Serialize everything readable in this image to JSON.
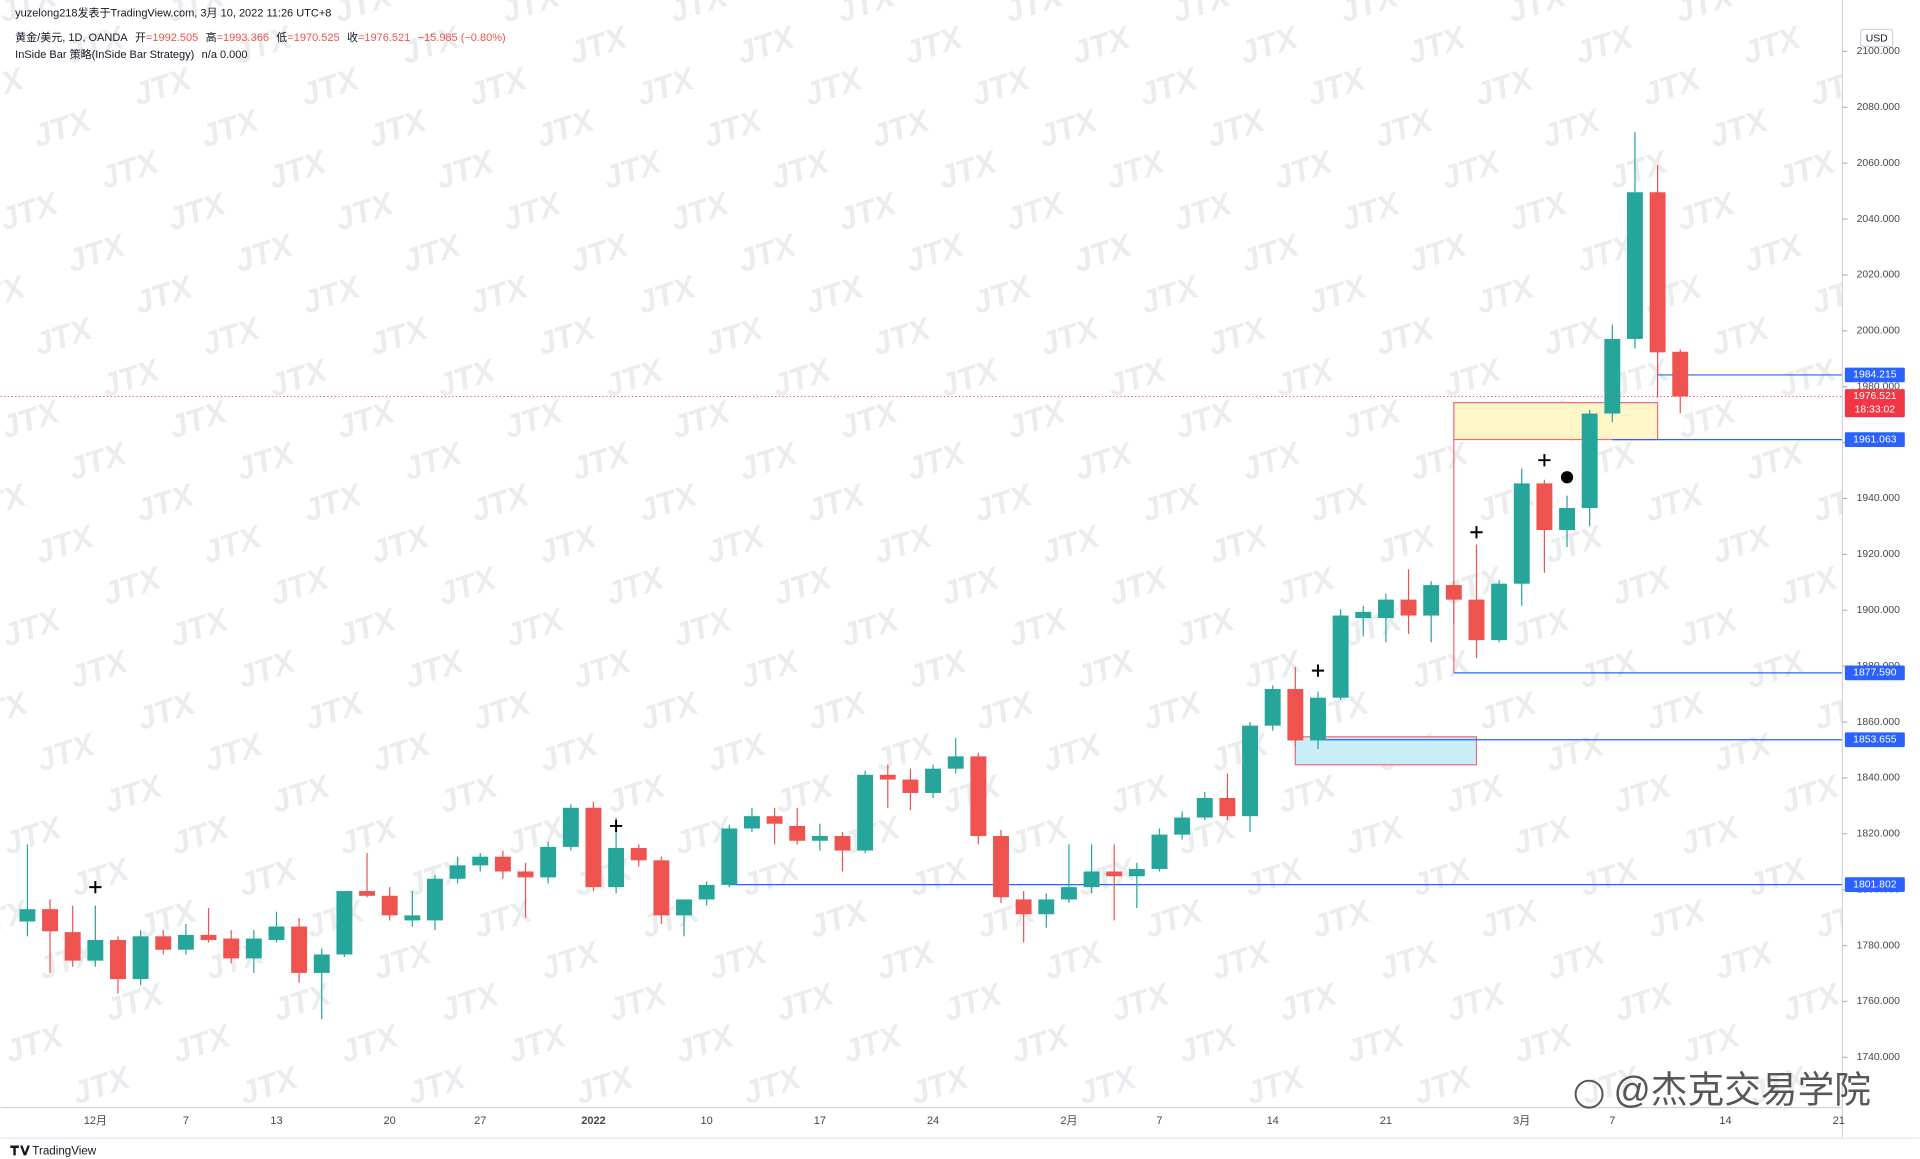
{
  "chart_data": {
    "type": "candlestick",
    "header": {
      "credit": "yuzelong218发表于TradingView.com, 3月 10, 2022 11:26 UTC+8",
      "symbol": "黄金/美元, 1D, OANDA",
      "ohlc": [
        [
          "开",
          "=1992.505"
        ],
        [
          "高",
          "=1993.366"
        ],
        [
          "低",
          "=1970.525"
        ],
        [
          "收",
          "=1976.521"
        ]
      ],
      "change": "−15.985 (−0.80%)",
      "indicator": "InSide Bar 策略(InSide Bar Strategy)",
      "indicator_values": "n/a  0.000"
    },
    "currency": "USD",
    "watermark": "JTX",
    "brand": "@杰克交易学院",
    "footer": "TradingView",
    "countdown": "18:33:02",
    "up_color": "#26a69a",
    "down_color": "#ef5350",
    "categories": [
      null,
      null,
      null,
      "12月",
      null,
      null,
      null,
      "7",
      null,
      null,
      null,
      "13",
      null,
      null,
      null,
      null,
      "20",
      null,
      null,
      null,
      "27",
      null,
      null,
      null,
      null,
      "2022",
      null,
      null,
      null,
      null,
      "10",
      null,
      null,
      null,
      null,
      "17",
      null,
      null,
      null,
      null,
      "24",
      null,
      null,
      null,
      null,
      null,
      "2月",
      null,
      null,
      null,
      "7",
      null,
      null,
      null,
      null,
      "14",
      null,
      null,
      null,
      null,
      "21",
      null,
      null,
      null,
      null,
      null,
      "3月",
      null,
      null,
      null,
      "7",
      null,
      null,
      null,
      null,
      "14",
      null,
      null,
      null,
      null,
      "21"
    ],
    "open": [
      1788.6,
      1793.0,
      1784.8,
      1774.6,
      1782.0,
      1768.0,
      1783.3,
      1778.5,
      1783.8,
      1782.5,
      1775.4,
      1782.0,
      1786.8,
      1770.2,
      1776.8,
      1799.5,
      1797.8,
      1789.0,
      1789.0,
      1803.9,
      1808.7,
      1811.8,
      1806.5,
      1804.4,
      1815.3,
      1829.3,
      1800.9,
      1814.9,
      1810.5,
      1790.8,
      1796.5,
      1801.7,
      1821.9,
      1826.3,
      1822.8,
      1817.5,
      1819.2,
      1814.0,
      1841.1,
      1839.4,
      1834.6,
      1843.3,
      1847.7,
      1819.2,
      1796.5,
      1791.2,
      1796.5,
      1800.9,
      1806.5,
      1804.8,
      1807.4,
      1819.7,
      1825.8,
      1832.8,
      1826.3,
      1858.7,
      1871.8,
      1853.4,
      1868.7,
      1897.2,
      1897.2,
      1903.8,
      1898.1,
      1909.0,
      1903.8,
      1889.3,
      1909.5,
      1945.4,
      1928.7,
      1936.6,
      1970.4,
      1997.1,
      2049.6,
      1992.505,
      null,
      null,
      null,
      null,
      null,
      null,
      null
    ],
    "high": [
      1816.2,
      1796.5,
      1794.3,
      1794.3,
      1783.3,
      1785.5,
      1785.5,
      1787.7,
      1793.4,
      1785.5,
      1785.5,
      1792.1,
      1789.9,
      1778.9,
      1799.5,
      1813.1,
      1800.9,
      1799.5,
      1805.2,
      1811.8,
      1813.1,
      1814.0,
      1809.6,
      1817.1,
      1830.6,
      1831.5,
      1825.8,
      1816.2,
      1811.8,
      1796.5,
      1803.0,
      1823.2,
      1829.3,
      1829.3,
      1829.3,
      1823.6,
      1820.6,
      1842.5,
      1844.7,
      1843.3,
      1844.7,
      1854.3,
      1849.0,
      1821.4,
      1799.5,
      1798.7,
      1816.2,
      1816.2,
      1816.2,
      1809.6,
      1821.9,
      1828.0,
      1835.0,
      1841.6,
      1860.0,
      1873.1,
      1879.7,
      1870.9,
      1900.3,
      1901.6,
      1906.0,
      1914.7,
      1910.4,
      1910.4,
      1923.5,
      1910.8,
      1950.7,
      1946.7,
      1941.0,
      1971.7,
      2002.3,
      2071.1,
      2059.3,
      1993.366,
      null,
      null,
      null,
      null,
      null,
      null,
      null
    ],
    "low": [
      1783.3,
      1770.2,
      1772.4,
      1772.4,
      1762.8,
      1765.8,
      1776.8,
      1776.8,
      1781.1,
      1773.7,
      1770.2,
      1781.1,
      1766.7,
      1753.6,
      1775.9,
      1797.3,
      1789.0,
      1786.8,
      1785.5,
      1802.2,
      1806.5,
      1803.9,
      1789.9,
      1802.2,
      1814.0,
      1799.5,
      1798.7,
      1808.3,
      1787.7,
      1783.3,
      1794.3,
      1800.9,
      1820.6,
      1816.2,
      1816.2,
      1814.0,
      1806.5,
      1813.1,
      1829.3,
      1828.4,
      1832.8,
      1841.6,
      1816.2,
      1795.2,
      1781.1,
      1786.4,
      1795.2,
      1798.7,
      1789.0,
      1793.4,
      1806.5,
      1817.9,
      1824.9,
      1824.9,
      1820.6,
      1856.9,
      1851.2,
      1850.3,
      1867.9,
      1890.6,
      1888.5,
      1891.5,
      1888.5,
      1895.0,
      1882.8,
      1888.5,
      1901.6,
      1913.4,
      1922.6,
      1930.1,
      1967.3,
      1993.6,
      1976.1,
      1970.525,
      null,
      null,
      null,
      null,
      null,
      null,
      null
    ],
    "close": [
      1793.0,
      1785.1,
      1774.6,
      1782.0,
      1768.0,
      1783.3,
      1778.5,
      1783.8,
      1782.0,
      1775.4,
      1782.5,
      1786.8,
      1770.2,
      1776.8,
      1799.5,
      1797.8,
      1790.8,
      1790.8,
      1803.9,
      1808.7,
      1811.8,
      1806.5,
      1804.4,
      1815.3,
      1829.3,
      1800.9,
      1814.9,
      1810.5,
      1790.8,
      1796.5,
      1801.7,
      1821.9,
      1826.3,
      1823.6,
      1817.5,
      1819.2,
      1814.0,
      1841.1,
      1839.4,
      1834.6,
      1843.3,
      1847.7,
      1819.2,
      1797.3,
      1791.2,
      1796.5,
      1800.9,
      1806.5,
      1804.8,
      1807.4,
      1819.7,
      1825.8,
      1832.8,
      1826.3,
      1858.7,
      1871.8,
      1853.4,
      1868.7,
      1898.1,
      1899.4,
      1903.8,
      1898.1,
      1909.0,
      1903.8,
      1889.3,
      1909.5,
      1945.4,
      1928.7,
      1936.6,
      1970.4,
      1997.1,
      2049.6,
      1992.3,
      1976.521,
      null,
      null,
      null,
      null,
      null,
      null,
      null
    ],
    "ylim": [
      1722.0,
      2118.4
    ],
    "yticks": [
      {
        "value": 1740,
        "label": "1740.000"
      },
      {
        "value": 1760,
        "label": "1760.000"
      },
      {
        "value": 1780,
        "label": "1780.000"
      },
      {
        "value": 1800,
        "label": "1800.000"
      },
      {
        "value": 1820,
        "label": "1820.000"
      },
      {
        "value": 1840,
        "label": "1840.000"
      },
      {
        "value": 1860,
        "label": "1860.000"
      },
      {
        "value": 1880,
        "label": "1880.000"
      },
      {
        "value": 1900,
        "label": "1900.000"
      },
      {
        "value": 1920,
        "label": "1920.000"
      },
      {
        "value": 1940,
        "label": "1940.000"
      },
      {
        "value": 1960,
        "label": "1960.000"
      },
      {
        "value": 1980,
        "label": "1980.000"
      },
      {
        "value": 2000,
        "label": "2000.000"
      },
      {
        "value": 2020,
        "label": "2020.000"
      },
      {
        "value": 2040,
        "label": "2040.000"
      },
      {
        "value": 2060,
        "label": "2060.000"
      },
      {
        "value": 2080,
        "label": "2080.000"
      },
      {
        "value": 2100,
        "label": "2100.000"
      }
    ],
    "levels": [
      {
        "value": 1984.215,
        "from": 72
      },
      {
        "value": 1961.063,
        "from": 70
      },
      {
        "value": {
          "value": 1877.59,
          "label": "1877.590"
        },
        "from": 63
      },
      {
        "value": 1853.655,
        "from": 57
      },
      {
        "value": 1801.802,
        "from": 31
      }
    ],
    "level_color": "#2962ff",
    "last_color": "#f23645",
    "boxes": [
      {
        "from": 63,
        "to": 72,
        "top": 1974.3,
        "bottom": 1961.1,
        "fill": "#fff6c8",
        "stroke": "#f06a7a"
      },
      {
        "from": 56,
        "to": 64,
        "top": 1854.7,
        "bottom": 1844.7,
        "fill": "#c9eef7",
        "stroke": "#f06a7a"
      }
    ],
    "markers": [
      {
        "at": 3,
        "price": 1800.9,
        "shape": "cross"
      },
      {
        "at": 26,
        "price": 1822.8,
        "shape": "cross"
      },
      {
        "at": 57,
        "price": 1878.4,
        "shape": "cross"
      },
      {
        "at": 64,
        "price": 1927.9,
        "shape": "cross"
      },
      {
        "at": 67,
        "price": 1953.7,
        "shape": "cross"
      },
      {
        "at": 68,
        "price": 1947.6,
        "shape": "dot"
      }
    ]
  }
}
